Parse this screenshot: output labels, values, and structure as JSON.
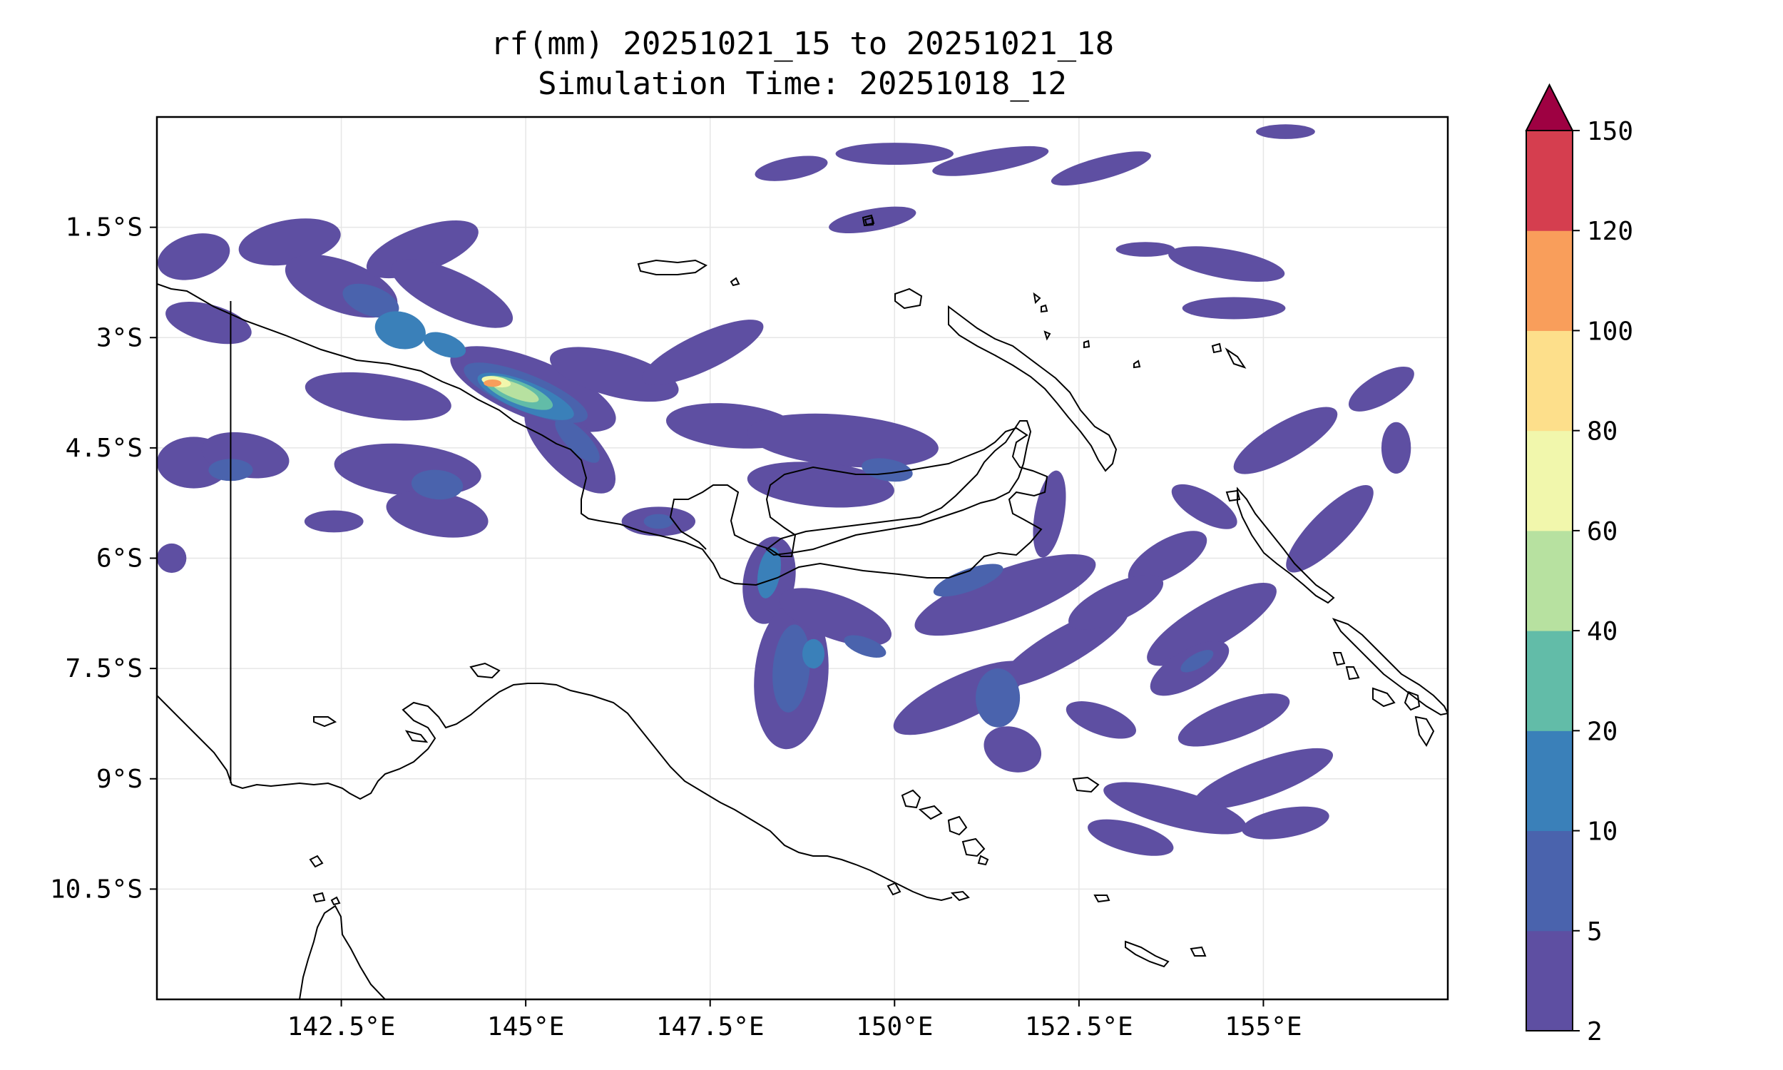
{
  "title": {
    "line1": "rf(mm) 20251021_15 to 20251021_18",
    "line2": "Simulation Time: 20251018_12"
  },
  "map": {
    "extent": {
      "lon_min": 140.0,
      "lon_max": 157.5,
      "lat_min": -12.0,
      "lat_max": 0.0
    },
    "x_ticks": [
      {
        "lon": 142.5,
        "label": "142.5°E"
      },
      {
        "lon": 145.0,
        "label": "145°E"
      },
      {
        "lon": 147.5,
        "label": "147.5°E"
      },
      {
        "lon": 150.0,
        "label": "150°E"
      },
      {
        "lon": 152.5,
        "label": "152.5°E"
      },
      {
        "lon": 155.0,
        "label": "155°E"
      }
    ],
    "y_ticks": [
      {
        "lat": -1.5,
        "label": "1.5°S"
      },
      {
        "lat": -3.0,
        "label": "3°S"
      },
      {
        "lat": -4.5,
        "label": "4.5°S"
      },
      {
        "lat": -6.0,
        "label": "6°S"
      },
      {
        "lat": -7.5,
        "label": "7.5°S"
      },
      {
        "lat": -9.0,
        "label": "9°S"
      },
      {
        "lat": -10.5,
        "label": "10.5°S"
      }
    ],
    "gridlines": true,
    "border_lon": 141.0
  },
  "colorbar": {
    "levels": [
      2,
      5,
      10,
      20,
      40,
      60,
      80,
      100,
      120,
      150
    ],
    "colors": [
      "#5e4fa2",
      "#4a63ad",
      "#3a80b9",
      "#62bca8",
      "#b7e1a0",
      "#f1f7ac",
      "#fddf8b",
      "#f99e5b",
      "#d53e4f"
    ],
    "extend_color": "#9e0142",
    "extend": "max"
  },
  "rain_cells": [
    {
      "lon": 140.5,
      "lat": -1.9,
      "rx": 0.5,
      "ry": 0.3,
      "ang": -15,
      "lvl": 1
    },
    {
      "lon": 141.8,
      "lat": -1.7,
      "rx": 0.7,
      "ry": 0.3,
      "ang": -10,
      "lvl": 1
    },
    {
      "lon": 142.5,
      "lat": -2.3,
      "rx": 0.8,
      "ry": 0.35,
      "ang": 20,
      "lvl": 1
    },
    {
      "lon": 142.9,
      "lat": -2.5,
      "rx": 0.4,
      "ry": 0.2,
      "ang": 20,
      "lvl": 2
    },
    {
      "lon": 143.3,
      "lat": -2.9,
      "rx": 0.35,
      "ry": 0.25,
      "ang": 15,
      "lvl": 3
    },
    {
      "lon": 143.6,
      "lat": -1.8,
      "rx": 0.8,
      "ry": 0.3,
      "ang": -20,
      "lvl": 1
    },
    {
      "lon": 144.0,
      "lat": -2.4,
      "rx": 0.9,
      "ry": 0.3,
      "ang": 25,
      "lvl": 1
    },
    {
      "lon": 143.9,
      "lat": -3.1,
      "rx": 0.3,
      "ry": 0.15,
      "ang": 20,
      "lvl": 3
    },
    {
      "lon": 140.7,
      "lat": -2.8,
      "rx": 0.6,
      "ry": 0.25,
      "ang": 15,
      "lvl": 1
    },
    {
      "lon": 140.5,
      "lat": -4.7,
      "rx": 0.5,
      "ry": 0.35,
      "ang": 0,
      "lvl": 1
    },
    {
      "lon": 141.2,
      "lat": -4.6,
      "rx": 0.6,
      "ry": 0.3,
      "ang": 10,
      "lvl": 1
    },
    {
      "lon": 141.0,
      "lat": -4.8,
      "rx": 0.3,
      "ry": 0.15,
      "ang": 0,
      "lvl": 2
    },
    {
      "lon": 143.0,
      "lat": -3.8,
      "rx": 1.0,
      "ry": 0.3,
      "ang": 8,
      "lvl": 1
    },
    {
      "lon": 143.4,
      "lat": -4.8,
      "rx": 1.0,
      "ry": 0.35,
      "ang": 5,
      "lvl": 1
    },
    {
      "lon": 143.8,
      "lat": -5.0,
      "rx": 0.35,
      "ry": 0.2,
      "ang": 5,
      "lvl": 2
    },
    {
      "lon": 143.8,
      "lat": -5.4,
      "rx": 0.7,
      "ry": 0.3,
      "ang": 10,
      "lvl": 1
    },
    {
      "lon": 142.4,
      "lat": -5.5,
      "rx": 0.4,
      "ry": 0.15,
      "ang": 0,
      "lvl": 1
    },
    {
      "lon": 140.2,
      "lat": -6.0,
      "rx": 0.2,
      "ry": 0.2,
      "ang": 0,
      "lvl": 1
    },
    {
      "lon": 145.1,
      "lat": -3.7,
      "rx": 1.2,
      "ry": 0.4,
      "ang": 22,
      "lvl": 1
    },
    {
      "lon": 145.0,
      "lat": -3.75,
      "rx": 0.9,
      "ry": 0.25,
      "ang": 22,
      "lvl": 2
    },
    {
      "lon": 145.0,
      "lat": -3.8,
      "rx": 0.7,
      "ry": 0.2,
      "ang": 22,
      "lvl": 3
    },
    {
      "lon": 144.9,
      "lat": -3.75,
      "rx": 0.5,
      "ry": 0.15,
      "ang": 22,
      "lvl": 4
    },
    {
      "lon": 144.85,
      "lat": -3.72,
      "rx": 0.35,
      "ry": 0.1,
      "ang": 22,
      "lvl": 5
    },
    {
      "lon": 144.6,
      "lat": -3.6,
      "rx": 0.2,
      "ry": 0.07,
      "ang": 10,
      "lvl": 6
    },
    {
      "lon": 144.55,
      "lat": -3.62,
      "rx": 0.12,
      "ry": 0.05,
      "ang": 0,
      "lvl": 8
    },
    {
      "lon": 145.6,
      "lat": -4.5,
      "rx": 0.8,
      "ry": 0.35,
      "ang": 45,
      "lvl": 1
    },
    {
      "lon": 145.7,
      "lat": -4.4,
      "rx": 0.4,
      "ry": 0.15,
      "ang": 45,
      "lvl": 2
    },
    {
      "lon": 146.2,
      "lat": -3.5,
      "rx": 0.9,
      "ry": 0.3,
      "ang": 15,
      "lvl": 1
    },
    {
      "lon": 147.4,
      "lat": -3.2,
      "rx": 0.9,
      "ry": 0.25,
      "ang": -25,
      "lvl": 1
    },
    {
      "lon": 147.8,
      "lat": -4.2,
      "rx": 0.9,
      "ry": 0.3,
      "ang": 5,
      "lvl": 1
    },
    {
      "lon": 149.3,
      "lat": -4.4,
      "rx": 1.3,
      "ry": 0.35,
      "ang": 5,
      "lvl": 1
    },
    {
      "lon": 149.0,
      "lat": -5.0,
      "rx": 1.0,
      "ry": 0.3,
      "ang": 5,
      "lvl": 1
    },
    {
      "lon": 149.9,
      "lat": -4.8,
      "rx": 0.35,
      "ry": 0.15,
      "ang": 10,
      "lvl": 2
    },
    {
      "lon": 146.8,
      "lat": -5.5,
      "rx": 0.5,
      "ry": 0.2,
      "ang": 0,
      "lvl": 1
    },
    {
      "lon": 146.8,
      "lat": -5.5,
      "rx": 0.2,
      "ry": 0.1,
      "ang": 0,
      "lvl": 2
    },
    {
      "lon": 148.3,
      "lat": -6.3,
      "rx": 0.35,
      "ry": 0.6,
      "ang": 10,
      "lvl": 1
    },
    {
      "lon": 148.3,
      "lat": -6.2,
      "rx": 0.15,
      "ry": 0.35,
      "ang": 10,
      "lvl": 3
    },
    {
      "lon": 148.6,
      "lat": -7.6,
      "rx": 0.5,
      "ry": 1.0,
      "ang": 5,
      "lvl": 1
    },
    {
      "lon": 148.6,
      "lat": -7.5,
      "rx": 0.25,
      "ry": 0.6,
      "ang": 5,
      "lvl": 2
    },
    {
      "lon": 148.9,
      "lat": -7.3,
      "rx": 0.15,
      "ry": 0.2,
      "ang": 0,
      "lvl": 3
    },
    {
      "lon": 149.2,
      "lat": -6.8,
      "rx": 0.8,
      "ry": 0.3,
      "ang": 20,
      "lvl": 1
    },
    {
      "lon": 149.6,
      "lat": -7.2,
      "rx": 0.3,
      "ry": 0.12,
      "ang": 20,
      "lvl": 2
    },
    {
      "lon": 151.5,
      "lat": -6.5,
      "rx": 1.3,
      "ry": 0.35,
      "ang": -20,
      "lvl": 1
    },
    {
      "lon": 151.0,
      "lat": -6.3,
      "rx": 0.5,
      "ry": 0.15,
      "ang": -20,
      "lvl": 2
    },
    {
      "lon": 152.1,
      "lat": -5.4,
      "rx": 0.2,
      "ry": 0.6,
      "ang": 10,
      "lvl": 1
    },
    {
      "lon": 150.9,
      "lat": -7.9,
      "rx": 1.0,
      "ry": 0.3,
      "ang": -25,
      "lvl": 1
    },
    {
      "lon": 151.4,
      "lat": -7.9,
      "rx": 0.3,
      "ry": 0.4,
      "ang": 0,
      "lvl": 2
    },
    {
      "lon": 152.3,
      "lat": -7.2,
      "rx": 1.0,
      "ry": 0.25,
      "ang": -30,
      "lvl": 1
    },
    {
      "lon": 152.8,
      "lat": -8.2,
      "rx": 0.5,
      "ry": 0.2,
      "ang": 20,
      "lvl": 1
    },
    {
      "lon": 151.6,
      "lat": -8.6,
      "rx": 0.4,
      "ry": 0.3,
      "ang": 20,
      "lvl": 1
    },
    {
      "lon": 153.7,
      "lat": -6.0,
      "rx": 0.6,
      "ry": 0.25,
      "ang": -30,
      "lvl": 1
    },
    {
      "lon": 153.0,
      "lat": -6.6,
      "rx": 0.7,
      "ry": 0.25,
      "ang": -25,
      "lvl": 1
    },
    {
      "lon": 154.3,
      "lat": -6.9,
      "rx": 1.0,
      "ry": 0.3,
      "ang": -30,
      "lvl": 1
    },
    {
      "lon": 154.0,
      "lat": -7.5,
      "rx": 0.6,
      "ry": 0.25,
      "ang": -30,
      "lvl": 1
    },
    {
      "lon": 154.1,
      "lat": -7.4,
      "rx": 0.25,
      "ry": 0.1,
      "ang": -30,
      "lvl": 2
    },
    {
      "lon": 154.6,
      "lat": -8.2,
      "rx": 0.8,
      "ry": 0.25,
      "ang": -20,
      "lvl": 1
    },
    {
      "lon": 155.0,
      "lat": -9.0,
      "rx": 1.0,
      "ry": 0.25,
      "ang": -20,
      "lvl": 1
    },
    {
      "lon": 153.8,
      "lat": -9.4,
      "rx": 1.0,
      "ry": 0.25,
      "ang": 15,
      "lvl": 1
    },
    {
      "lon": 153.2,
      "lat": -9.8,
      "rx": 0.6,
      "ry": 0.2,
      "ang": 15,
      "lvl": 1
    },
    {
      "lon": 155.3,
      "lat": -9.6,
      "rx": 0.6,
      "ry": 0.2,
      "ang": -10,
      "lvl": 1
    },
    {
      "lon": 155.3,
      "lat": -4.4,
      "rx": 0.8,
      "ry": 0.25,
      "ang": -30,
      "lvl": 1
    },
    {
      "lon": 155.9,
      "lat": -5.6,
      "rx": 0.8,
      "ry": 0.25,
      "ang": -45,
      "lvl": 1
    },
    {
      "lon": 154.2,
      "lat": -5.3,
      "rx": 0.5,
      "ry": 0.2,
      "ang": 30,
      "lvl": 1
    },
    {
      "lon": 156.8,
      "lat": -4.5,
      "rx": 0.2,
      "ry": 0.35,
      "ang": 0,
      "lvl": 1
    },
    {
      "lon": 156.6,
      "lat": -3.7,
      "rx": 0.5,
      "ry": 0.2,
      "ang": -30,
      "lvl": 1
    },
    {
      "lon": 150.0,
      "lat": -0.5,
      "rx": 0.8,
      "ry": 0.15,
      "ang": 0,
      "lvl": 1
    },
    {
      "lon": 151.3,
      "lat": -0.6,
      "rx": 0.8,
      "ry": 0.15,
      "ang": -10,
      "lvl": 1
    },
    {
      "lon": 152.8,
      "lat": -0.7,
      "rx": 0.7,
      "ry": 0.15,
      "ang": -15,
      "lvl": 1
    },
    {
      "lon": 148.6,
      "lat": -0.7,
      "rx": 0.5,
      "ry": 0.15,
      "ang": -10,
      "lvl": 1
    },
    {
      "lon": 153.4,
      "lat": -1.8,
      "rx": 0.4,
      "ry": 0.1,
      "ang": 0,
      "lvl": 1
    },
    {
      "lon": 154.5,
      "lat": -2.0,
      "rx": 0.8,
      "ry": 0.2,
      "ang": 10,
      "lvl": 1
    },
    {
      "lon": 154.6,
      "lat": -2.6,
      "rx": 0.7,
      "ry": 0.15,
      "ang": 0,
      "lvl": 1
    },
    {
      "lon": 149.7,
      "lat": -1.4,
      "rx": 0.6,
      "ry": 0.15,
      "ang": -10,
      "lvl": 1
    },
    {
      "lon": 155.3,
      "lat": -0.2,
      "rx": 0.4,
      "ry": 0.1,
      "ang": 0,
      "lvl": 1
    }
  ]
}
